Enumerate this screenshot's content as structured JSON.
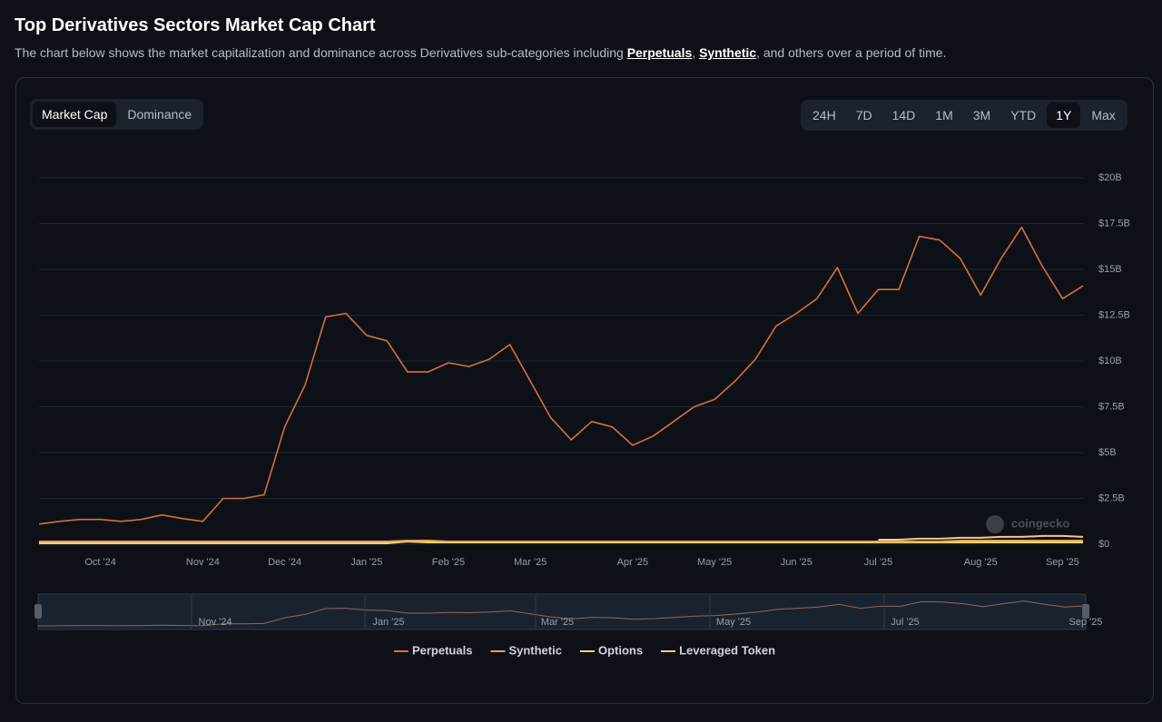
{
  "page": {
    "title": "Top Derivatives Sectors Market Cap Chart",
    "subtitle": [
      "The chart below shows the market capitalization and dominance across Derivatives sub-categories including ",
      "Perpetuals",
      ", ",
      "Synthetic",
      ", and others over a period of time."
    ],
    "tabs": [
      "Market Cap",
      "Dominance"
    ],
    "active_tab": 0,
    "ranges": [
      "24H",
      "7D",
      "14D",
      "1M",
      "3M",
      "YTD",
      "1Y",
      "Max"
    ],
    "active_range": 6,
    "watermark": "coingecko",
    "navigator_labels": [
      "Nov '24",
      "Jan '25",
      "Mar '25",
      "May '25",
      "Jul '25",
      "Sep '25"
    ]
  },
  "chart_data": {
    "type": "line",
    "categories": [
      null,
      null,
      null,
      "Oct '24",
      null,
      null,
      null,
      null,
      "Nov '24",
      null,
      null,
      null,
      "Dec '24",
      null,
      null,
      null,
      "Jan '25",
      null,
      null,
      null,
      "Feb '25",
      null,
      null,
      null,
      "Mar '25",
      null,
      null,
      null,
      null,
      "Apr '25",
      null,
      null,
      null,
      "May '25",
      null,
      null,
      null,
      "Jun '25",
      null,
      null,
      null,
      "Jul '25",
      null,
      null,
      null,
      null,
      "Aug '25",
      null,
      null,
      null,
      "Sep '25",
      null
    ],
    "series": [
      {
        "name": "Perpetuals",
        "color": "#d4703e",
        "values": [
          1.1,
          1.25,
          1.35,
          1.35,
          1.25,
          1.35,
          1.6,
          1.4,
          1.25,
          2.5,
          2.5,
          2.7,
          6.4,
          8.7,
          12.4,
          12.6,
          11.4,
          11.1,
          9.4,
          9.4,
          9.9,
          9.7,
          10.1,
          10.9,
          8.9,
          6.9,
          5.7,
          6.7,
          6.4,
          5.4,
          5.9,
          6.7,
          7.5,
          7.9,
          8.9,
          10.1,
          11.9,
          12.6,
          13.4,
          15.1,
          12.6,
          13.9,
          13.9,
          16.8,
          16.6,
          15.6,
          13.6,
          15.6,
          17.3,
          15.2,
          13.4,
          14.1
        ]
      },
      {
        "name": "Synthetic",
        "color": "#e8a060",
        "values": [
          0.15,
          0.15,
          0.15,
          0.15,
          0.15,
          0.15,
          0.15,
          0.15,
          0.15,
          0.15,
          0.15,
          0.15,
          0.15,
          0.15,
          0.15,
          0.15,
          0.15,
          0.15,
          0.2,
          0.2,
          0.15,
          0.15,
          0.15,
          0.15,
          0.15,
          0.15,
          0.15,
          0.15,
          0.15,
          0.15,
          0.15,
          0.15,
          0.15,
          0.15,
          0.15,
          0.15,
          0.15,
          0.15,
          0.15,
          0.15,
          0.15,
          0.15,
          0.15,
          0.15,
          0.15,
          0.2,
          0.2,
          0.2,
          0.2,
          0.2,
          0.2,
          0.2
        ]
      },
      {
        "name": "Options",
        "color": "#f5d76e",
        "values": [
          0.05,
          0.05,
          0.05,
          0.05,
          0.05,
          0.05,
          0.05,
          0.05,
          0.05,
          0.05,
          0.05,
          0.05,
          0.05,
          0.05,
          0.05,
          0.05,
          0.05,
          0.05,
          0.15,
          0.1,
          0.1,
          0.1,
          0.1,
          0.1,
          0.1,
          0.1,
          0.1,
          0.1,
          0.1,
          0.1,
          0.1,
          0.1,
          0.1,
          0.1,
          0.1,
          0.1,
          0.1,
          0.1,
          0.1,
          0.1,
          0.1,
          0.1,
          0.1,
          0.1,
          0.1,
          0.1,
          0.1,
          0.1,
          0.1,
          0.1,
          0.1,
          0.1
        ]
      },
      {
        "name": "Leveraged Token",
        "color": "#f3c98b",
        "values": [
          null,
          null,
          null,
          null,
          null,
          null,
          null,
          null,
          null,
          null,
          null,
          null,
          null,
          null,
          null,
          null,
          null,
          null,
          null,
          null,
          null,
          null,
          null,
          null,
          null,
          null,
          null,
          null,
          null,
          null,
          null,
          null,
          null,
          null,
          null,
          null,
          null,
          null,
          null,
          null,
          null,
          0.25,
          0.25,
          0.3,
          0.3,
          0.35,
          0.35,
          0.4,
          0.4,
          0.45,
          0.45,
          0.4
        ]
      }
    ],
    "ylim": [
      0,
      20
    ],
    "yticks": [
      {
        "value": 0,
        "label": "$0"
      },
      {
        "value": 2.5,
        "label": "$2.5B"
      },
      {
        "value": 5,
        "label": "$5B"
      },
      {
        "value": 7.5,
        "label": "$7.5B"
      },
      {
        "value": 10,
        "label": "$10B"
      },
      {
        "value": 12.5,
        "label": "$12.5B"
      },
      {
        "value": 15,
        "label": "$15B"
      },
      {
        "value": 17.5,
        "label": "$17.5B"
      },
      {
        "value": 20,
        "label": "$20B"
      }
    ],
    "grid": true
  }
}
